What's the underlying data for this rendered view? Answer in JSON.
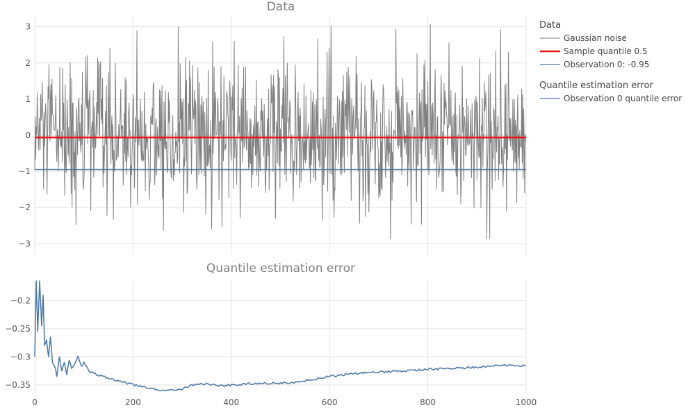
{
  "chart_data": [
    {
      "type": "line",
      "title": "Data",
      "xlim": [
        0,
        1000
      ],
      "ylim": [
        -3.3,
        3.3
      ],
      "grid": true,
      "y_ticks": [
        -3,
        -2,
        -1,
        0,
        1,
        2,
        3
      ],
      "y_tick_labels": [
        "−3",
        "−2",
        "−1",
        "0",
        "1",
        "2",
        "3"
      ],
      "x_ticks": [
        0,
        200,
        400,
        600,
        800,
        1000
      ],
      "legend_group": "Data",
      "legend_placement": "right",
      "series": [
        {
          "name": "Gaussian noise",
          "color": "#808080",
          "generator": "gaussian",
          "n_points": 1000,
          "approx_min": -2.86,
          "approx_max": 3.07,
          "peaks": [
            {
              "x": 292,
              "y": 3.0
            },
            {
              "x": 805,
              "y": 3.07
            },
            {
              "x": 920,
              "y": -2.86
            },
            {
              "x": 262,
              "y": -2.63
            },
            {
              "x": 84,
              "y": -2.47
            },
            {
              "x": 787,
              "y": -2.46
            },
            {
              "x": 948,
              "y": 2.92
            },
            {
              "x": 147,
              "y": -2.22
            }
          ]
        },
        {
          "name": "Sample quantile 0.5",
          "color": "#ee1111",
          "constant": -0.06
        },
        {
          "name": "Observation 0: -0.95",
          "color": "#4a76a8",
          "constant": -0.95
        }
      ]
    },
    {
      "type": "line",
      "title": "Quantile estimation error",
      "xlim": [
        0,
        1000
      ],
      "ylim": [
        -0.365,
        -0.165
      ],
      "grid": true,
      "y_ticks": [
        -0.35,
        -0.3,
        -0.25,
        -0.2
      ],
      "y_tick_labels": [
        "−0.35",
        "−0.3",
        "−0.25",
        "−0.2"
      ],
      "x_ticks": [
        0,
        200,
        400,
        600,
        800,
        1000
      ],
      "x_tick_labels": [
        "0",
        "200",
        "400",
        "600",
        "800",
        "1000"
      ],
      "legend_group": "Quantile estimation error",
      "series": [
        {
          "name": "Observation 0 quantile error",
          "color": "#4a76a8",
          "anchor_points": [
            [
              0,
              -0.3
            ],
            [
              3,
              -0.165
            ],
            [
              6,
              -0.255
            ],
            [
              10,
              -0.165
            ],
            [
              14,
              -0.245
            ],
            [
              17,
              -0.19
            ],
            [
              20,
              -0.28
            ],
            [
              24,
              -0.27
            ],
            [
              28,
              -0.3
            ],
            [
              32,
              -0.265
            ],
            [
              36,
              -0.31
            ],
            [
              42,
              -0.32
            ],
            [
              45,
              -0.335
            ],
            [
              50,
              -0.3
            ],
            [
              55,
              -0.325
            ],
            [
              60,
              -0.31
            ],
            [
              65,
              -0.33
            ],
            [
              70,
              -0.305
            ],
            [
              75,
              -0.32
            ],
            [
              82,
              -0.312
            ],
            [
              88,
              -0.3
            ],
            [
              95,
              -0.318
            ],
            [
              100,
              -0.31
            ],
            [
              110,
              -0.325
            ],
            [
              120,
              -0.33
            ],
            [
              140,
              -0.335
            ],
            [
              160,
              -0.34
            ],
            [
              180,
              -0.345
            ],
            [
              200,
              -0.35
            ],
            [
              230,
              -0.355
            ],
            [
              260,
              -0.36
            ],
            [
              290,
              -0.36
            ],
            [
              320,
              -0.35
            ],
            [
              350,
              -0.348
            ],
            [
              380,
              -0.352
            ],
            [
              400,
              -0.35
            ],
            [
              450,
              -0.347
            ],
            [
              500,
              -0.347
            ],
            [
              550,
              -0.343
            ],
            [
              600,
              -0.335
            ],
            [
              650,
              -0.33
            ],
            [
              700,
              -0.327
            ],
            [
              750,
              -0.325
            ],
            [
              800,
              -0.322
            ],
            [
              850,
              -0.321
            ],
            [
              900,
              -0.318
            ],
            [
              950,
              -0.315
            ],
            [
              1000,
              -0.316
            ]
          ]
        }
      ]
    }
  ]
}
